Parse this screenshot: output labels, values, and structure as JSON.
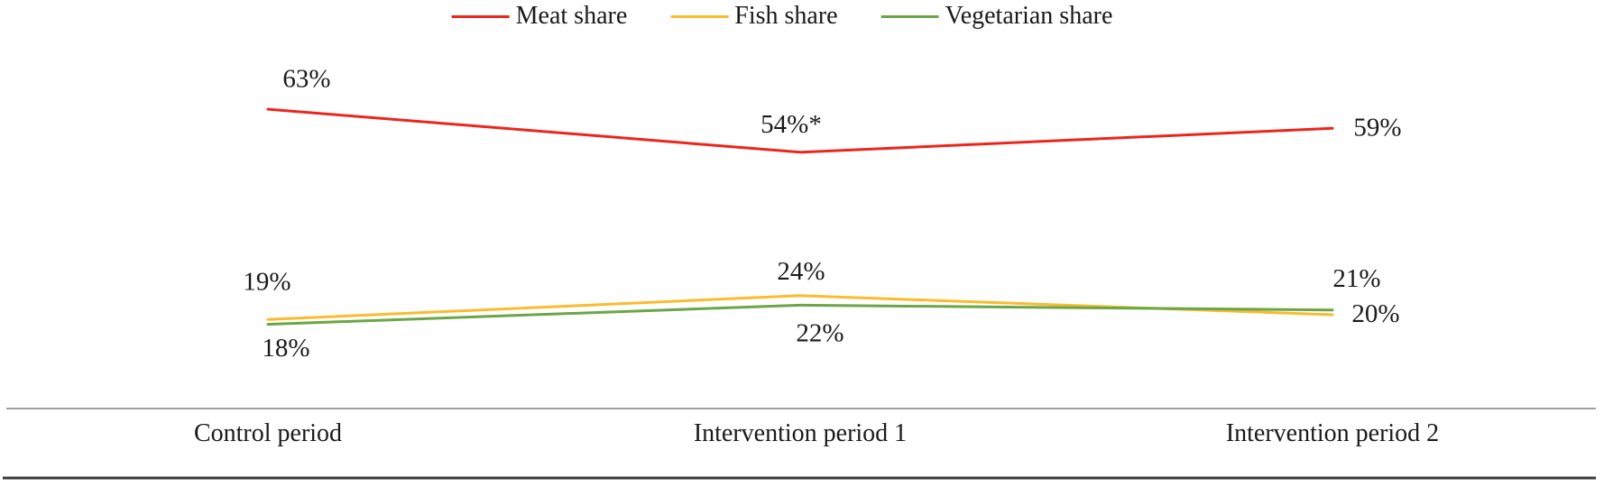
{
  "page": {
    "background": "#ffffff"
  },
  "chart_data": {
    "type": "line",
    "title": "",
    "xlabel": "",
    "ylabel": "",
    "categories": [
      "Control period",
      "Intervention period 1",
      "Intervention period 2"
    ],
    "series": [
      {
        "name": "Meat share",
        "color": "#ed251c",
        "values": [
          63,
          54,
          59
        ],
        "data_labels": [
          "63%",
          "54%*",
          "59%"
        ]
      },
      {
        "name": "Fish share",
        "color": "#fabb2d",
        "values": [
          19,
          24,
          20
        ],
        "data_labels": [
          "19%",
          "24%",
          "20%"
        ]
      },
      {
        "name": "Vegetarian share",
        "color": "#6aa647",
        "values": [
          18,
          22,
          21
        ],
        "data_labels": [
          "18%",
          "22%",
          "21%"
        ]
      }
    ],
    "legend": {
      "position": "top",
      "entries": [
        "Meat share",
        "Fish share",
        "Vegetarian share"
      ]
    },
    "axes": {
      "ylim": [
        0,
        85
      ],
      "grid": false,
      "y_axis_visible": false,
      "x_axis_line_color": "#9e9e9e",
      "bottom_rule_color": "#3a3a3a"
    },
    "label_color": "#1a1a1a"
  }
}
